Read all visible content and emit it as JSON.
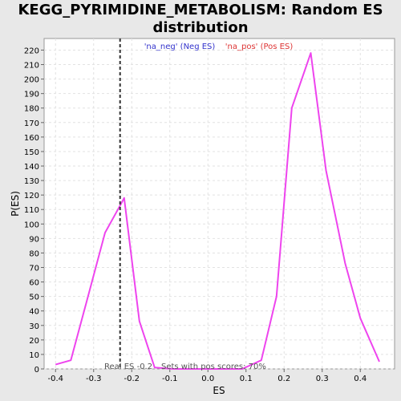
{
  "chart_data": {
    "type": "line",
    "title_lines": [
      "KEGG_PYRIMIDINE_METABOLISM: Random ES",
      "distribution"
    ],
    "xlabel": "ES",
    "ylabel": "P(ES)",
    "xlim": [
      -0.43,
      0.49
    ],
    "ylim": [
      0,
      228
    ],
    "x_ticks": [
      -0.4,
      -0.3,
      -0.2,
      -0.1,
      0.0,
      0.1,
      0.2,
      0.3,
      0.4
    ],
    "x_tick_labels": [
      "-0.4",
      "-0.3",
      "-0.2",
      "-0.1",
      "0.0",
      "0.1",
      "0.2",
      "0.3",
      "0.4"
    ],
    "y_ticks": [
      0,
      10,
      20,
      30,
      40,
      50,
      60,
      70,
      80,
      90,
      100,
      110,
      120,
      130,
      140,
      150,
      160,
      170,
      180,
      190,
      200,
      210,
      220
    ],
    "grid": true,
    "legend": [
      {
        "label": "'na_neg' (Neg ES)",
        "color": "#3333cc"
      },
      {
        "label": "'na_pos' (Pos ES)",
        "color": "#dd3333"
      }
    ],
    "series": [
      {
        "color": "#ee44ee",
        "x": [
          -0.4,
          -0.36,
          -0.32,
          -0.27,
          -0.23,
          -0.22,
          -0.18,
          -0.14,
          -0.09,
          0.0,
          0.09,
          0.14,
          0.18,
          0.22,
          0.27,
          0.31,
          0.36,
          0.4,
          0.45
        ],
        "y": [
          3,
          6,
          45,
          94,
          113,
          118,
          33,
          1,
          0,
          0,
          0,
          6,
          50,
          180,
          218,
          137,
          73,
          35,
          5
        ]
      }
    ],
    "real_es": -0.2306,
    "annotations": [
      "Real ES -0.2",
      "Sets with pos scores: 70%"
    ]
  }
}
